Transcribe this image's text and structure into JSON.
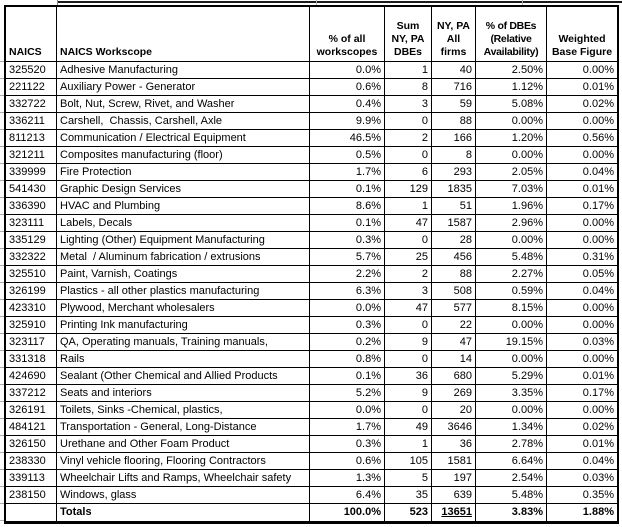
{
  "colors": {
    "table_border": "#000000",
    "sheet_gridline": "#ababab",
    "text": "#000000",
    "background": "#ffffff"
  },
  "table": {
    "columns": [
      {
        "label": "NAICS"
      },
      {
        "label": "NAICS Workscope"
      },
      {
        "label": "% of all\nworkscopes"
      },
      {
        "label": "Sum\nNY, PA\nDBEs"
      },
      {
        "label": "NY, PA\nAll\nfirms"
      },
      {
        "label": "% of DBEs\n(Relative\nAvailability)"
      },
      {
        "label": "Weighted\nBase Figure"
      }
    ],
    "rows": [
      [
        "325520",
        "Adhesive Manufacturing",
        "0.0%",
        "1",
        "40",
        "2.50%",
        "0.00%"
      ],
      [
        "221122",
        "Auxiliary Power - Generator",
        "0.6%",
        "8",
        "716",
        "1.12%",
        "0.01%"
      ],
      [
        "332722",
        "Bolt, Nut, Screw, Rivet, and Washer",
        "0.4%",
        "3",
        "59",
        "5.08%",
        "0.02%"
      ],
      [
        "336211",
        "Carshell,  Chassis, Carshell, Axle",
        "9.9%",
        "0",
        "88",
        "0.00%",
        "0.00%"
      ],
      [
        "811213",
        "Communication / Electrical Equipment",
        "46.5%",
        "2",
        "166",
        "1.20%",
        "0.56%"
      ],
      [
        "321211",
        "Composites manufacturing (floor)",
        "0.5%",
        "0",
        "8",
        "0.00%",
        "0.00%"
      ],
      [
        "339999",
        "Fire Protection",
        "1.7%",
        "6",
        "293",
        "2.05%",
        "0.04%"
      ],
      [
        "541430",
        "Graphic Design Services",
        "0.1%",
        "129",
        "1835",
        "7.03%",
        "0.01%"
      ],
      [
        "336390",
        "HVAC and Plumbing",
        "8.6%",
        "1",
        "51",
        "1.96%",
        "0.17%"
      ],
      [
        "323111",
        "Labels, Decals",
        "0.1%",
        "47",
        "1587",
        "2.96%",
        "0.00%"
      ],
      [
        "335129",
        "Lighting (Other) Equipment Manufacturing",
        "0.3%",
        "0",
        "28",
        "0.00%",
        "0.00%"
      ],
      [
        "332322",
        "Metal  / Aluminum fabrication / extrusions",
        "5.7%",
        "25",
        "456",
        "5.48%",
        "0.31%"
      ],
      [
        "325510",
        "Paint, Varnish, Coatings",
        "2.2%",
        "2",
        "88",
        "2.27%",
        "0.05%"
      ],
      [
        "326199",
        "Plastics - all other plastics manufacturing",
        "6.3%",
        "3",
        "508",
        "0.59%",
        "0.04%"
      ],
      [
        "423310",
        "Plywood, Merchant wholesalers",
        "0.0%",
        "47",
        "577",
        "8.15%",
        "0.00%"
      ],
      [
        "325910",
        "Printing Ink manufacturing",
        "0.3%",
        "0",
        "22",
        "0.00%",
        "0.00%"
      ],
      [
        "323117",
        "QA, Operating manuals, Training manuals,",
        "0.2%",
        "9",
        "47",
        "19.15%",
        "0.03%"
      ],
      [
        "331318",
        "Rails",
        "0.8%",
        "0",
        "14",
        "0.00%",
        "0.00%"
      ],
      [
        "424690",
        "Sealant (Other Chemical and Allied Products",
        "0.1%",
        "36",
        "680",
        "5.29%",
        "0.01%"
      ],
      [
        "337212",
        "Seats and interiors",
        "5.2%",
        "9",
        "269",
        "3.35%",
        "0.17%"
      ],
      [
        "326191",
        "Toilets, Sinks -Chemical, plastics,",
        "0.0%",
        "0",
        "20",
        "0.00%",
        "0.00%"
      ],
      [
        "484121",
        "Transportation - General, Long-Distance",
        "1.7%",
        "49",
        "3646",
        "1.34%",
        "0.02%"
      ],
      [
        "326150",
        "Urethane and Other Foam Product",
        "0.3%",
        "1",
        "36",
        "2.78%",
        "0.01%"
      ],
      [
        "238330",
        "Vinyl vehicle flooring, Flooring Contractors",
        "0.6%",
        "105",
        "1581",
        "6.64%",
        "0.04%"
      ],
      [
        "339113",
        "Wheelchair Lifts and Ramps, Wheelchair safety",
        "1.3%",
        "5",
        "197",
        "2.54%",
        "0.03%"
      ],
      [
        "238150",
        "Windows, glass",
        "6.4%",
        "35",
        "639",
        "5.48%",
        "0.35%"
      ]
    ],
    "totals": {
      "naics": "",
      "label": "Totals",
      "pct_workscopes": "100.0%",
      "sum_dbes": "523",
      "all_firms": "13651",
      "pct_dbes": "3.83%",
      "weighted": "1.88%"
    }
  }
}
